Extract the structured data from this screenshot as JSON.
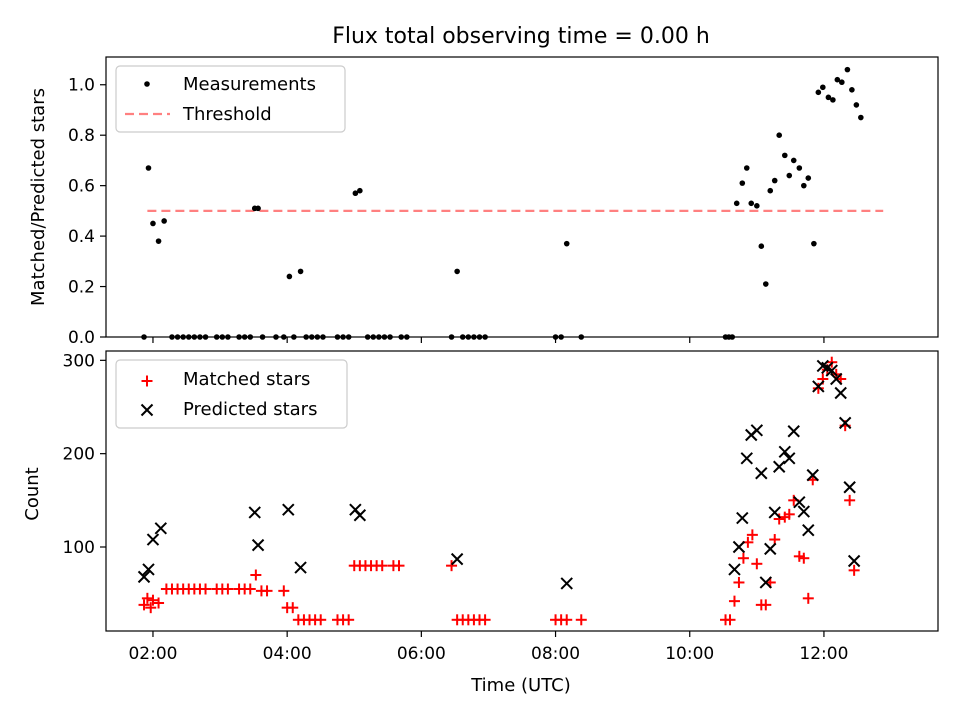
{
  "figure": {
    "title": "Flux total observing time = 0.00 h",
    "xlabel": "Time (UTC)",
    "xticks": [
      "02:00",
      "04:00",
      "06:00",
      "08:00",
      "10:00",
      "12:00"
    ],
    "xlim": [
      "01:18",
      "13:42"
    ]
  },
  "colors": {
    "measurements": "#000000",
    "threshold": "#ff8080",
    "matched": "#ff0000",
    "predicted": "#000000"
  },
  "chart_data": [
    {
      "type": "scatter",
      "ylabel": "Matched/Predicted stars",
      "ylim": [
        0,
        1.11
      ],
      "yticks": [
        "0.0",
        "0.2",
        "0.4",
        "0.6",
        "0.8",
        "1.0"
      ],
      "legend": {
        "placement": "top-left",
        "entries": [
          "Measurements",
          "Threshold"
        ]
      },
      "threshold": {
        "name": "Threshold",
        "value": 0.5,
        "x_range": [
          "01:55",
          "12:53"
        ]
      },
      "series": [
        {
          "name": "Measurements",
          "points": [
            [
              "01:52",
              0.0
            ],
            [
              "01:56",
              0.67
            ],
            [
              "02:00",
              0.45
            ],
            [
              "02:05",
              0.38
            ],
            [
              "02:10",
              0.46
            ],
            [
              "02:17",
              0.0
            ],
            [
              "02:22",
              0.0
            ],
            [
              "02:27",
              0.0
            ],
            [
              "02:32",
              0.0
            ],
            [
              "02:37",
              0.0
            ],
            [
              "02:42",
              0.0
            ],
            [
              "02:47",
              0.0
            ],
            [
              "02:57",
              0.0
            ],
            [
              "03:02",
              0.0
            ],
            [
              "03:07",
              0.0
            ],
            [
              "03:17",
              0.0
            ],
            [
              "03:22",
              0.0
            ],
            [
              "03:27",
              0.0
            ],
            [
              "03:31",
              0.51
            ],
            [
              "03:34",
              0.51
            ],
            [
              "03:38",
              0.0
            ],
            [
              "03:50",
              0.0
            ],
            [
              "03:57",
              0.0
            ],
            [
              "04:02",
              0.24
            ],
            [
              "04:06",
              0.0
            ],
            [
              "04:12",
              0.26
            ],
            [
              "04:17",
              0.0
            ],
            [
              "04:22",
              0.0
            ],
            [
              "04:27",
              0.0
            ],
            [
              "04:32",
              0.0
            ],
            [
              "04:45",
              0.0
            ],
            [
              "04:50",
              0.0
            ],
            [
              "04:55",
              0.0
            ],
            [
              "05:01",
              0.57
            ],
            [
              "05:05",
              0.58
            ],
            [
              "05:12",
              0.0
            ],
            [
              "05:17",
              0.0
            ],
            [
              "05:22",
              0.0
            ],
            [
              "05:27",
              0.0
            ],
            [
              "05:32",
              0.0
            ],
            [
              "05:42",
              0.0
            ],
            [
              "05:47",
              0.0
            ],
            [
              "06:27",
              0.0
            ],
            [
              "06:32",
              0.26
            ],
            [
              "06:37",
              0.0
            ],
            [
              "06:42",
              0.0
            ],
            [
              "06:47",
              0.0
            ],
            [
              "06:52",
              0.0
            ],
            [
              "06:57",
              0.0
            ],
            [
              "08:00",
              0.0
            ],
            [
              "08:05",
              0.0
            ],
            [
              "08:10",
              0.37
            ],
            [
              "08:23",
              0.0
            ],
            [
              "10:32",
              0.0
            ],
            [
              "10:35",
              0.0
            ],
            [
              "10:38",
              0.0
            ],
            [
              "10:42",
              0.53
            ],
            [
              "10:47",
              0.61
            ],
            [
              "10:51",
              0.67
            ],
            [
              "10:55",
              0.53
            ],
            [
              "11:00",
              0.52
            ],
            [
              "11:04",
              0.36
            ],
            [
              "11:08",
              0.21
            ],
            [
              "11:12",
              0.58
            ],
            [
              "11:16",
              0.62
            ],
            [
              "11:20",
              0.8
            ],
            [
              "11:25",
              0.72
            ],
            [
              "11:29",
              0.64
            ],
            [
              "11:33",
              0.7
            ],
            [
              "11:38",
              0.67
            ],
            [
              "11:42",
              0.6
            ],
            [
              "11:46",
              0.63
            ],
            [
              "11:51",
              0.37
            ],
            [
              "11:55",
              0.97
            ],
            [
              "11:59",
              0.99
            ],
            [
              "12:04",
              0.95
            ],
            [
              "12:08",
              0.94
            ],
            [
              "12:12",
              1.02
            ],
            [
              "12:16",
              1.01
            ],
            [
              "12:21",
              1.06
            ],
            [
              "12:25",
              0.98
            ],
            [
              "12:29",
              0.92
            ],
            [
              "12:33",
              0.87
            ]
          ]
        }
      ]
    },
    {
      "type": "scatter",
      "ylabel": "Count",
      "ylim": [
        10,
        310
      ],
      "yticks": [
        "100",
        "200",
        "300"
      ],
      "legend": {
        "placement": "top-left",
        "entries": [
          "Matched stars",
          "Predicted stars"
        ]
      },
      "series": [
        {
          "name": "Matched stars",
          "marker": "plus",
          "points": [
            [
              "01:52",
              38
            ],
            [
              "01:55",
              45
            ],
            [
              "01:58",
              35
            ],
            [
              "02:00",
              43
            ],
            [
              "02:05",
              40
            ],
            [
              "02:12",
              55
            ],
            [
              "02:17",
              55
            ],
            [
              "02:22",
              55
            ],
            [
              "02:27",
              55
            ],
            [
              "02:32",
              55
            ],
            [
              "02:37",
              55
            ],
            [
              "02:42",
              55
            ],
            [
              "02:47",
              55
            ],
            [
              "02:57",
              55
            ],
            [
              "03:02",
              55
            ],
            [
              "03:07",
              55
            ],
            [
              "03:17",
              55
            ],
            [
              "03:22",
              55
            ],
            [
              "03:27",
              55
            ],
            [
              "03:32",
              70
            ],
            [
              "03:37",
              53
            ],
            [
              "03:42",
              53
            ],
            [
              "03:57",
              53
            ],
            [
              "04:00",
              35
            ],
            [
              "04:05",
              35
            ],
            [
              "04:10",
              22
            ],
            [
              "04:15",
              22
            ],
            [
              "04:20",
              22
            ],
            [
              "04:25",
              22
            ],
            [
              "04:30",
              22
            ],
            [
              "04:45",
              22
            ],
            [
              "04:50",
              22
            ],
            [
              "04:55",
              22
            ],
            [
              "05:00",
              80
            ],
            [
              "05:05",
              80
            ],
            [
              "05:10",
              80
            ],
            [
              "05:15",
              80
            ],
            [
              "05:20",
              80
            ],
            [
              "05:25",
              80
            ],
            [
              "05:35",
              80
            ],
            [
              "05:40",
              80
            ],
            [
              "06:27",
              80
            ],
            [
              "06:32",
              22
            ],
            [
              "06:37",
              22
            ],
            [
              "06:42",
              22
            ],
            [
              "06:47",
              22
            ],
            [
              "06:52",
              22
            ],
            [
              "06:57",
              22
            ],
            [
              "08:00",
              22
            ],
            [
              "08:05",
              22
            ],
            [
              "08:10",
              22
            ],
            [
              "08:23",
              22
            ],
            [
              "10:32",
              22
            ],
            [
              "10:36",
              22
            ],
            [
              "10:40",
              42
            ],
            [
              "10:44",
              62
            ],
            [
              "10:48",
              88
            ],
            [
              "10:52",
              105
            ],
            [
              "10:56",
              113
            ],
            [
              "11:00",
              82
            ],
            [
              "11:04",
              38
            ],
            [
              "11:08",
              38
            ],
            [
              "11:12",
              62
            ],
            [
              "11:16",
              108
            ],
            [
              "11:20",
              130
            ],
            [
              "11:25",
              132
            ],
            [
              "11:29",
              135
            ],
            [
              "11:33",
              150
            ],
            [
              "11:38",
              90
            ],
            [
              "11:42",
              88
            ],
            [
              "11:46",
              45
            ],
            [
              "11:50",
              172
            ],
            [
              "11:55",
              270
            ],
            [
              "11:59",
              280
            ],
            [
              "12:03",
              290
            ],
            [
              "12:07",
              298
            ],
            [
              "12:11",
              285
            ],
            [
              "12:15",
              280
            ],
            [
              "12:19",
              230
            ],
            [
              "12:23",
              150
            ],
            [
              "12:27",
              75
            ]
          ]
        },
        {
          "name": "Predicted stars",
          "marker": "x",
          "points": [
            [
              "01:52",
              68
            ],
            [
              "01:56",
              76
            ],
            [
              "02:00",
              108
            ],
            [
              "02:07",
              120
            ],
            [
              "03:31",
              137
            ],
            [
              "03:34",
              102
            ],
            [
              "04:01",
              140
            ],
            [
              "04:12",
              78
            ],
            [
              "05:01",
              140
            ],
            [
              "05:05",
              134
            ],
            [
              "06:32",
              87
            ],
            [
              "08:10",
              61
            ],
            [
              "10:40",
              76
            ],
            [
              "10:44",
              100
            ],
            [
              "10:47",
              131
            ],
            [
              "10:51",
              195
            ],
            [
              "10:55",
              220
            ],
            [
              "11:00",
              225
            ],
            [
              "11:04",
              179
            ],
            [
              "11:08",
              62
            ],
            [
              "11:12",
              98
            ],
            [
              "11:16",
              137
            ],
            [
              "11:20",
              186
            ],
            [
              "11:25",
              202
            ],
            [
              "11:29",
              195
            ],
            [
              "11:33",
              224
            ],
            [
              "11:38",
              148
            ],
            [
              "11:42",
              138
            ],
            [
              "11:46",
              118
            ],
            [
              "11:50",
              177
            ],
            [
              "11:55",
              272
            ],
            [
              "11:59",
              294
            ],
            [
              "12:03",
              292
            ],
            [
              "12:07",
              289
            ],
            [
              "12:11",
              280
            ],
            [
              "12:15",
              265
            ],
            [
              "12:19",
              233
            ],
            [
              "12:23",
              164
            ],
            [
              "12:27",
              85
            ]
          ]
        }
      ]
    }
  ]
}
